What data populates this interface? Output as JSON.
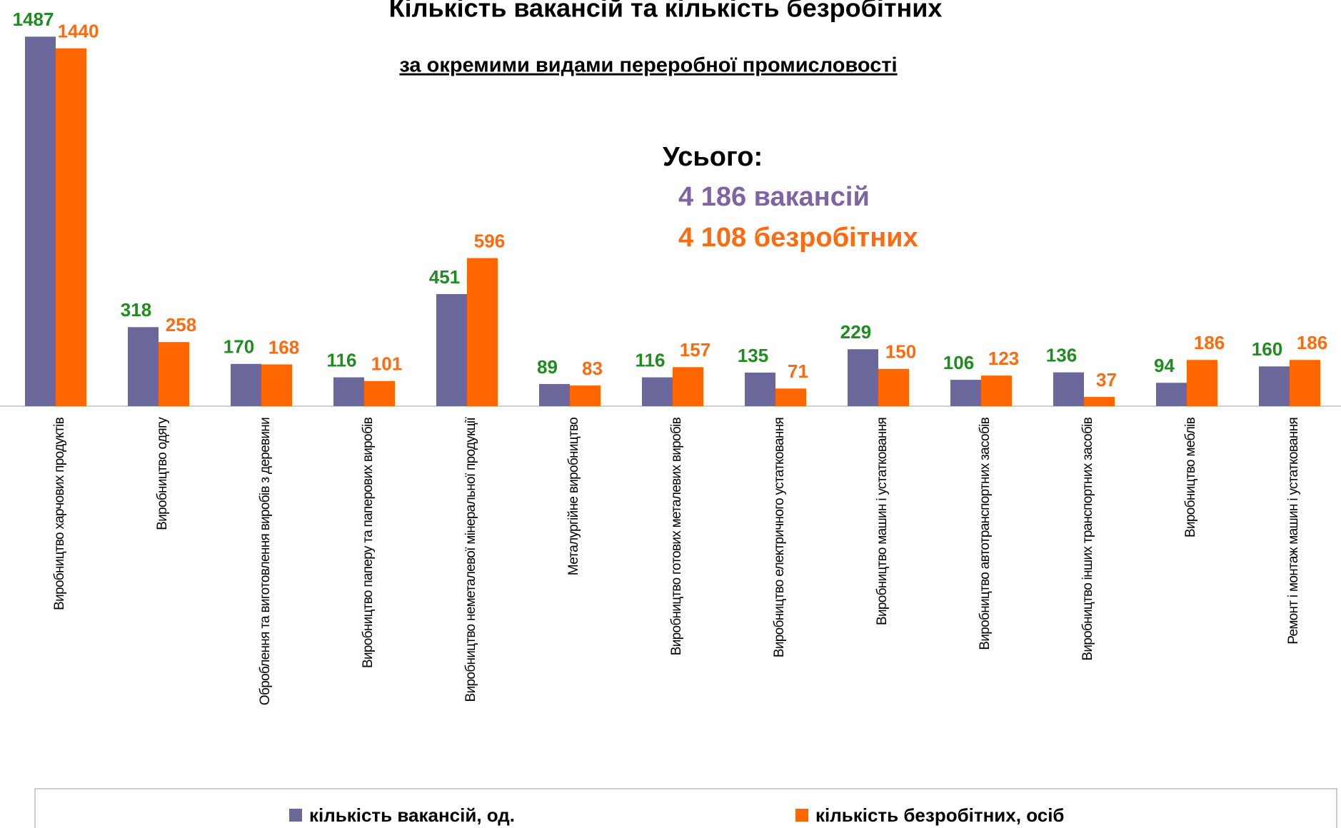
{
  "chart_data": {
    "type": "bar",
    "title": "Кількість вакансій та кількість безробітних",
    "subtitle": "за окремими видами переробної промисловості",
    "annotations": [
      "Усього:",
      "4 186 вакансій",
      "4 108 безробітних"
    ],
    "categories": [
      "Виробництво харчових продуктів",
      "Виробництво одягу",
      "Оброблення та виготовлення виробів з деревини",
      "Виробництво паперу та паперових виробів",
      "Виробництво неметалевої мінеральної продукції",
      "Металургійне виробництво",
      "Виробництво готових металевих виробів",
      "Виробництво електричного устатковання",
      "Виробництво машин і устатковання",
      "Виробництво автотранспортних засобів",
      "Виробництво інших транспортних засобів",
      "Виробництво меблів",
      "Ремонт і монтаж машин і устатковання"
    ],
    "series": [
      {
        "name": "кількість вакансій, од.",
        "color": "#6a679b",
        "label_color": "#1e8c1e",
        "values": [
          1487,
          318,
          170,
          116,
          451,
          89,
          116,
          135,
          229,
          106,
          136,
          94,
          160
        ]
      },
      {
        "name": "кількість безробітних, осіб",
        "color": "#ff6600",
        "label_color": "#ff6a10",
        "values": [
          1440,
          258,
          168,
          101,
          596,
          83,
          157,
          71,
          150,
          123,
          37,
          186,
          186
        ]
      }
    ],
    "ylim": [
      0,
      1600
    ],
    "legend": "bottom"
  }
}
